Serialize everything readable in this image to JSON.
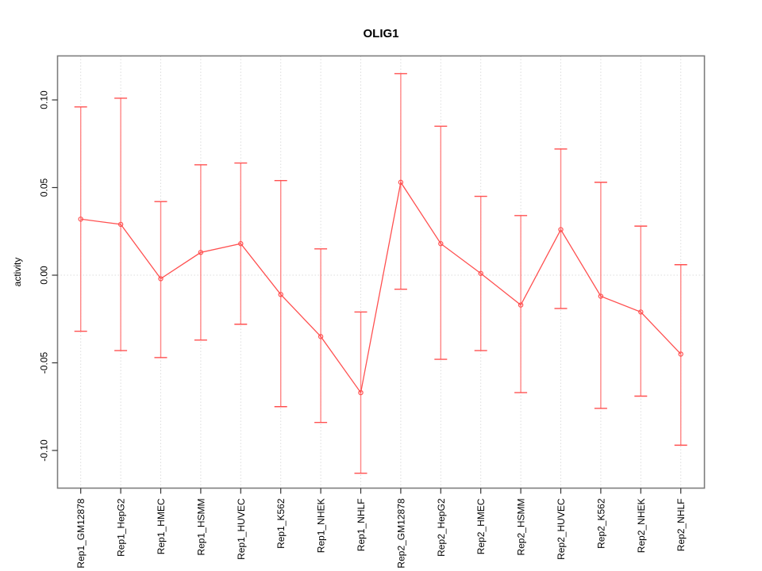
{
  "figure": {
    "background": "#ffffff"
  },
  "chart_data": {
    "type": "line",
    "subtype": "points-with-error-bars",
    "title": "OLIG1",
    "xlabel": "",
    "ylabel": "activity",
    "legend": "none",
    "grid": "vertical dotted gridline at each category; dotted horizontal line at y=0",
    "categories": [
      "Rep1_GM12878",
      "Rep1_HepG2",
      "Rep1_HMEC",
      "Rep1_HSMM",
      "Rep1_HUVEC",
      "Rep1_K562",
      "Rep1_NHEK",
      "Rep1_NHLF",
      "Rep2_GM12878",
      "Rep2_HepG2",
      "Rep2_HMEC",
      "Rep2_HSMM",
      "Rep2_HUVEC",
      "Rep2_K562",
      "Rep2_NHEK",
      "Rep2_NHLF"
    ],
    "series": [
      {
        "name": "activity",
        "values": [
          0.032,
          0.029,
          -0.002,
          0.013,
          0.018,
          -0.011,
          -0.035,
          -0.067,
          0.053,
          0.018,
          0.001,
          -0.017,
          0.026,
          -0.012,
          -0.021,
          -0.045
        ],
        "error_upper": [
          0.096,
          0.101,
          0.042,
          0.063,
          0.064,
          0.054,
          0.015,
          -0.021,
          0.115,
          0.085,
          0.045,
          0.034,
          0.072,
          0.053,
          0.028,
          0.006
        ],
        "error_lower": [
          -0.032,
          -0.043,
          -0.047,
          -0.037,
          -0.028,
          -0.075,
          -0.084,
          -0.113,
          -0.008,
          -0.048,
          -0.043,
          -0.067,
          -0.019,
          -0.076,
          -0.069,
          -0.097
        ]
      }
    ],
    "y_ticks": [
      0.1,
      0.05,
      0.0,
      -0.05,
      -0.1
    ],
    "y_tick_labels": [
      "0.10",
      "0.05",
      "0.00",
      "-0.05",
      "-0.10"
    ],
    "ylim": [
      -0.122,
      0.124
    ],
    "colors": {
      "series": "#ff5050",
      "error_bar_stem": "#ff8585",
      "grid": "#dcdcdc",
      "zero_line": "#dcdcdc",
      "axis_box": "#7d7d7d",
      "tick": "#333333"
    }
  }
}
